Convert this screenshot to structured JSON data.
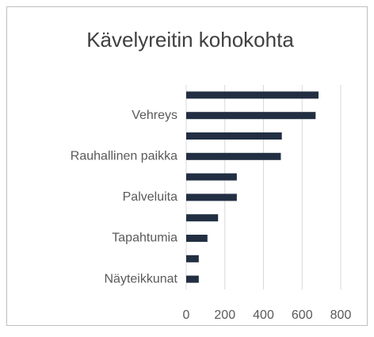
{
  "chart_data": {
    "type": "bar",
    "orientation": "horizontal",
    "title": "Kävelyreitin kohokohta",
    "categories": [
      null,
      "Vehreys",
      null,
      "Rauhallinen paikka",
      null,
      "Palveluita",
      null,
      "Tapahtumia",
      null,
      "Näyteikkunat"
    ],
    "values": [
      685,
      670,
      495,
      490,
      262,
      262,
      165,
      110,
      65,
      65
    ],
    "color": "#222f42",
    "xlim": [
      0,
      800
    ],
    "xticks": [
      0,
      200,
      400,
      600,
      800
    ],
    "grid": true
  }
}
